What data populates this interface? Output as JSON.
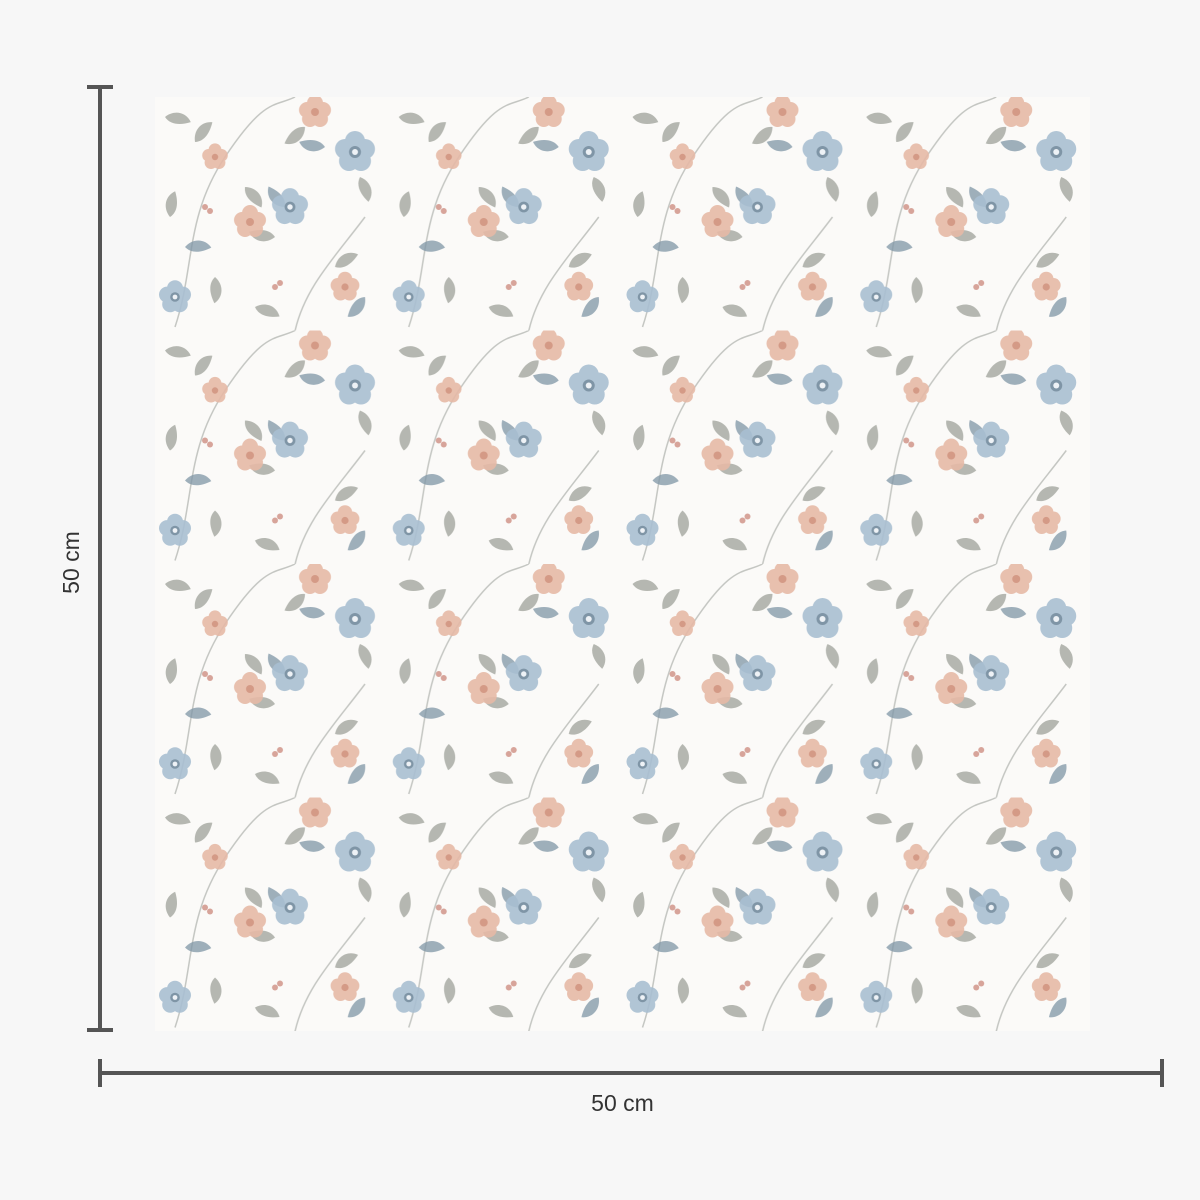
{
  "product": {
    "width_label": "50 cm",
    "height_label": "50 cm",
    "pattern_icon": "floral-pattern-icon",
    "colors": {
      "background": "#f7f7f7",
      "swatch_base": "#fbfaf8",
      "dimension_line": "#555555",
      "leaf": "#a9aca4",
      "leaf_blue": "#7f95a6",
      "flower_blue": "#a9bfd2",
      "flower_pink": "#e6b9a6"
    }
  }
}
